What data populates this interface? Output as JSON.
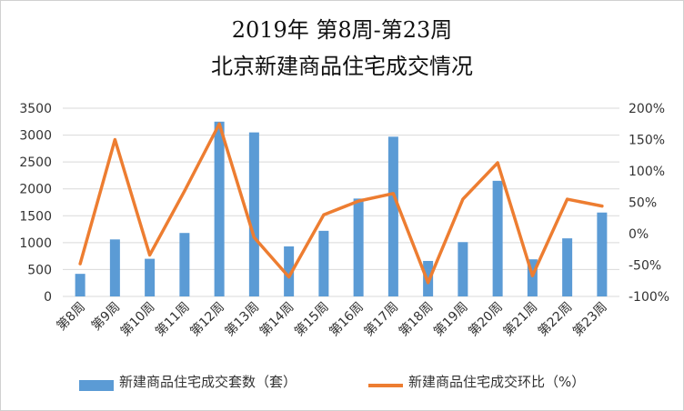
{
  "chart_data": {
    "type": "bar+line",
    "title": [
      "2019年 第8周-第23周",
      "北京新建商品住宅成交情况"
    ],
    "categories": [
      "第8周",
      "第9周",
      "第10周",
      "第11周",
      "第12周",
      "第13周",
      "第14周",
      "第15周",
      "第16周",
      "第17周",
      "第18周",
      "第19周",
      "第20周",
      "第21周",
      "第22周",
      "第23周"
    ],
    "series": [
      {
        "name": "新建商品住宅成交套数（套）",
        "type": "bar",
        "axis": "left",
        "color": "#5b9bd5",
        "values": [
          420,
          1060,
          700,
          1180,
          3250,
          3050,
          930,
          1220,
          1820,
          2970,
          660,
          1010,
          2150,
          690,
          1080,
          1560
        ]
      },
      {
        "name": "新建商品住宅成交环比（%）",
        "type": "line",
        "axis": "right",
        "color": "#ed7d31",
        "values": [
          -48,
          150,
          -34,
          68,
          175,
          -6,
          -69,
          30,
          52,
          64,
          -78,
          55,
          113,
          -67,
          55,
          44
        ]
      }
    ],
    "left_axis": {
      "ylim": [
        0,
        3500
      ],
      "ticks": [
        "0",
        "500",
        "1000",
        "1500",
        "2000",
        "2500",
        "3000",
        "3500"
      ]
    },
    "right_axis": {
      "ylim": [
        -100,
        200
      ],
      "ticks": [
        "-100%",
        "-50%",
        "0%",
        "50%",
        "100%",
        "150%",
        "200%"
      ]
    },
    "grid": true,
    "legend": "bottom"
  }
}
